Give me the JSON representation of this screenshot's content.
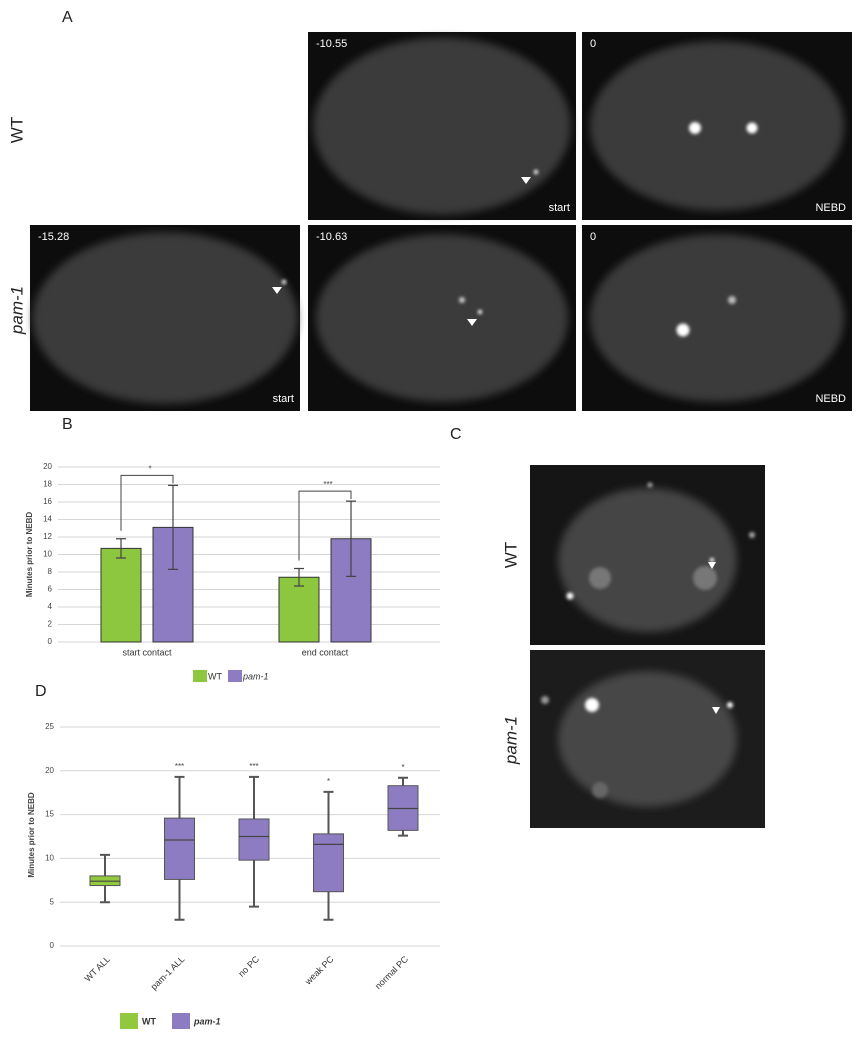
{
  "panel_a": {
    "label": "A",
    "rows": [
      "WT",
      "pam-1"
    ],
    "images": [
      {
        "time": "-10.55",
        "stage": "start"
      },
      {
        "time": "0",
        "stage": "NEBD"
      },
      {
        "time": "-15.28",
        "stage": "start"
      },
      {
        "time": "-10.63"
      },
      {
        "time": "0",
        "stage": "NEBD"
      }
    ]
  },
  "panel_c": {
    "label": "C",
    "rows": [
      "WT",
      "pam-1"
    ]
  },
  "chart_data": [
    {
      "type": "bar",
      "label": "B",
      "y_label": "Minutes prior to NEBD",
      "categories": [
        "start contact",
        "end contact"
      ],
      "series": [
        {
          "name": "WT",
          "color": "#8dc63f",
          "values": [
            10.7,
            7.4
          ],
          "errors": [
            1.1,
            1.0
          ]
        },
        {
          "name": "pam-1",
          "color": "#8e7cc3",
          "values": [
            13.1,
            11.8
          ],
          "errors": [
            4.8,
            4.3
          ]
        }
      ],
      "ylim": [
        0,
        20
      ],
      "yticks": [
        0,
        2,
        4,
        6,
        8,
        10,
        12,
        14,
        16,
        18,
        20
      ],
      "grid": true,
      "annotations": [
        {
          "category": "start contact",
          "text": "*"
        },
        {
          "category": "end contact",
          "text": "***"
        }
      ]
    },
    {
      "type": "box",
      "label": "D",
      "y_label": "Minutes prior to NEBD",
      "categories": [
        "WT ALL",
        "pam-1 ALL",
        "no PC",
        "weak PC",
        "normal PC"
      ],
      "min": [
        5,
        3,
        4.5,
        3,
        12.6
      ],
      "q1": [
        6.9,
        7.6,
        9.8,
        6.2,
        13.2
      ],
      "median": [
        7.4,
        12.1,
        12.5,
        11.6,
        15.7
      ],
      "q3": [
        8.0,
        14.6,
        14.5,
        12.8,
        18.3
      ],
      "max": [
        10.4,
        19.3,
        19.3,
        17.6,
        19.2
      ],
      "colors": [
        "#92c83e",
        "#8e7cc3",
        "#8e7cc3",
        "#8e7cc3",
        "#8e7cc3"
      ],
      "legend": [
        {
          "name": "WT",
          "color": "#92c83e"
        },
        {
          "name": "pam-1",
          "color": "#8e7cc3"
        }
      ],
      "ylim": [
        0,
        25
      ],
      "yticks": [
        0,
        5,
        10,
        15,
        20,
        25
      ],
      "grid": true,
      "annotations": [
        {
          "category": "pam-1 ALL",
          "text": "***"
        },
        {
          "category": "no PC",
          "text": "***"
        },
        {
          "category": "weak PC",
          "text": "*"
        },
        {
          "category": "normal PC",
          "text": "*"
        }
      ]
    }
  ]
}
